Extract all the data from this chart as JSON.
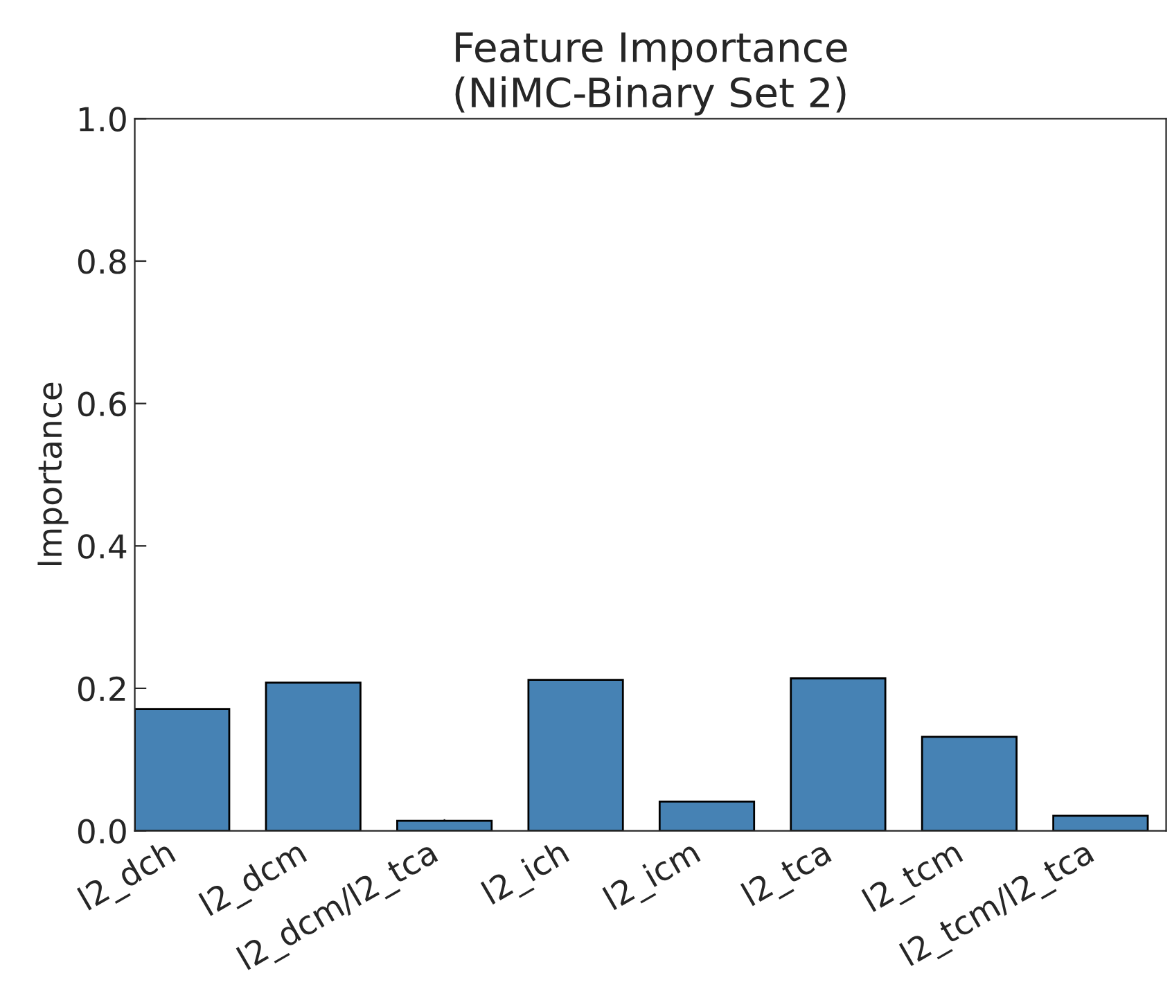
{
  "chart_data": {
    "type": "bar",
    "title": "Feature Importance\n(NiMC-Binary Set 2)",
    "ylabel": "Importance",
    "categories": [
      "l2_dch",
      "l2_dcm",
      "l2_dcm/l2_tca",
      "l2_ich",
      "l2_icm",
      "l2_tca",
      "l2_tcm",
      "l2_tcm/l2_tca"
    ],
    "values": [
      0.171,
      0.208,
      0.014,
      0.212,
      0.041,
      0.214,
      0.132,
      0.021
    ],
    "color": "#4682b4",
    "ylim": [
      0,
      1.0
    ],
    "yticks": [
      {
        "value": 0,
        "label": "0.0"
      },
      {
        "value": 0.2,
        "label": "0.2"
      },
      {
        "value": 0.4,
        "label": "0.4"
      },
      {
        "value": 0.6,
        "label": "0.6"
      },
      {
        "value": 0.8,
        "label": "0.8"
      },
      {
        "value": 1.0,
        "label": "1.0"
      }
    ],
    "grid": false,
    "legend": false
  }
}
